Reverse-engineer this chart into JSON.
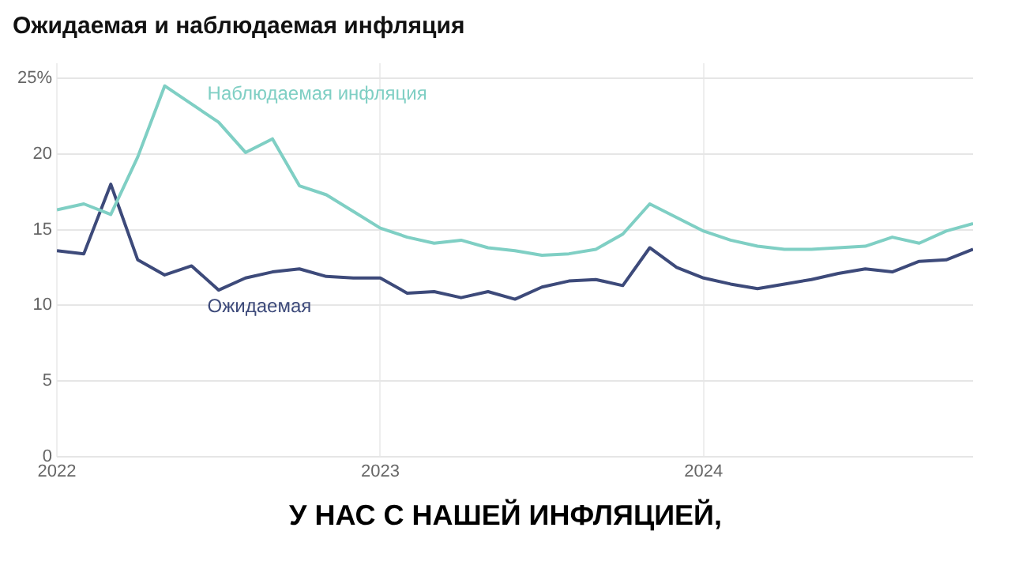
{
  "chart_data": {
    "type": "line",
    "title": "Ожидаемая и наблюдаемая инфляция",
    "x": [
      "2022-01",
      "2022-02",
      "2022-03",
      "2022-04",
      "2022-05",
      "2022-06",
      "2022-07",
      "2022-08",
      "2022-09",
      "2022-10",
      "2022-11",
      "2022-12",
      "2023-01",
      "2023-02",
      "2023-03",
      "2023-04",
      "2023-05",
      "2023-06",
      "2023-07",
      "2023-08",
      "2023-09",
      "2023-10",
      "2023-11",
      "2023-12",
      "2024-01",
      "2024-02",
      "2024-03",
      "2024-04",
      "2024-05",
      "2024-06",
      "2024-07",
      "2024-08",
      "2024-09",
      "2024-10",
      "2024-11"
    ],
    "series": [
      {
        "name": "Наблюдаемая инфляция",
        "color": "#7fcfc4",
        "values": [
          16.3,
          16.7,
          16.0,
          19.8,
          24.5,
          23.3,
          22.1,
          20.1,
          21.0,
          17.9,
          17.3,
          16.2,
          15.1,
          14.5,
          14.1,
          14.3,
          13.8,
          13.6,
          13.3,
          13.4,
          13.7,
          14.7,
          16.7,
          15.8,
          14.9,
          14.3,
          13.9,
          13.7,
          13.7,
          13.8,
          13.9,
          14.5,
          14.1,
          14.9,
          15.4
        ]
      },
      {
        "name": "Ожидаемая",
        "color": "#3d4a7a",
        "values": [
          13.6,
          13.4,
          18.0,
          13.0,
          12.0,
          12.6,
          11.0,
          11.8,
          12.2,
          12.4,
          11.9,
          11.8,
          11.8,
          10.8,
          10.9,
          10.5,
          10.9,
          10.4,
          11.2,
          11.6,
          11.7,
          11.3,
          13.8,
          12.5,
          11.8,
          11.4,
          11.1,
          11.4,
          11.7,
          12.1,
          12.4,
          12.2,
          12.9,
          13.0,
          13.7
        ]
      }
    ],
    "xlim": [
      "2022-01",
      "2024-11"
    ],
    "xticks": [
      "2022",
      "2023",
      "2024"
    ],
    "ylim": [
      0,
      26
    ],
    "yticks": [
      0,
      5,
      10,
      15,
      20,
      {
        "value": 25,
        "label": "25%"
      }
    ],
    "grid": true,
    "legend": false,
    "annotations": [
      "У НАС С НАШЕЙ ИНФЛЯЦИЕЙ,"
    ]
  }
}
